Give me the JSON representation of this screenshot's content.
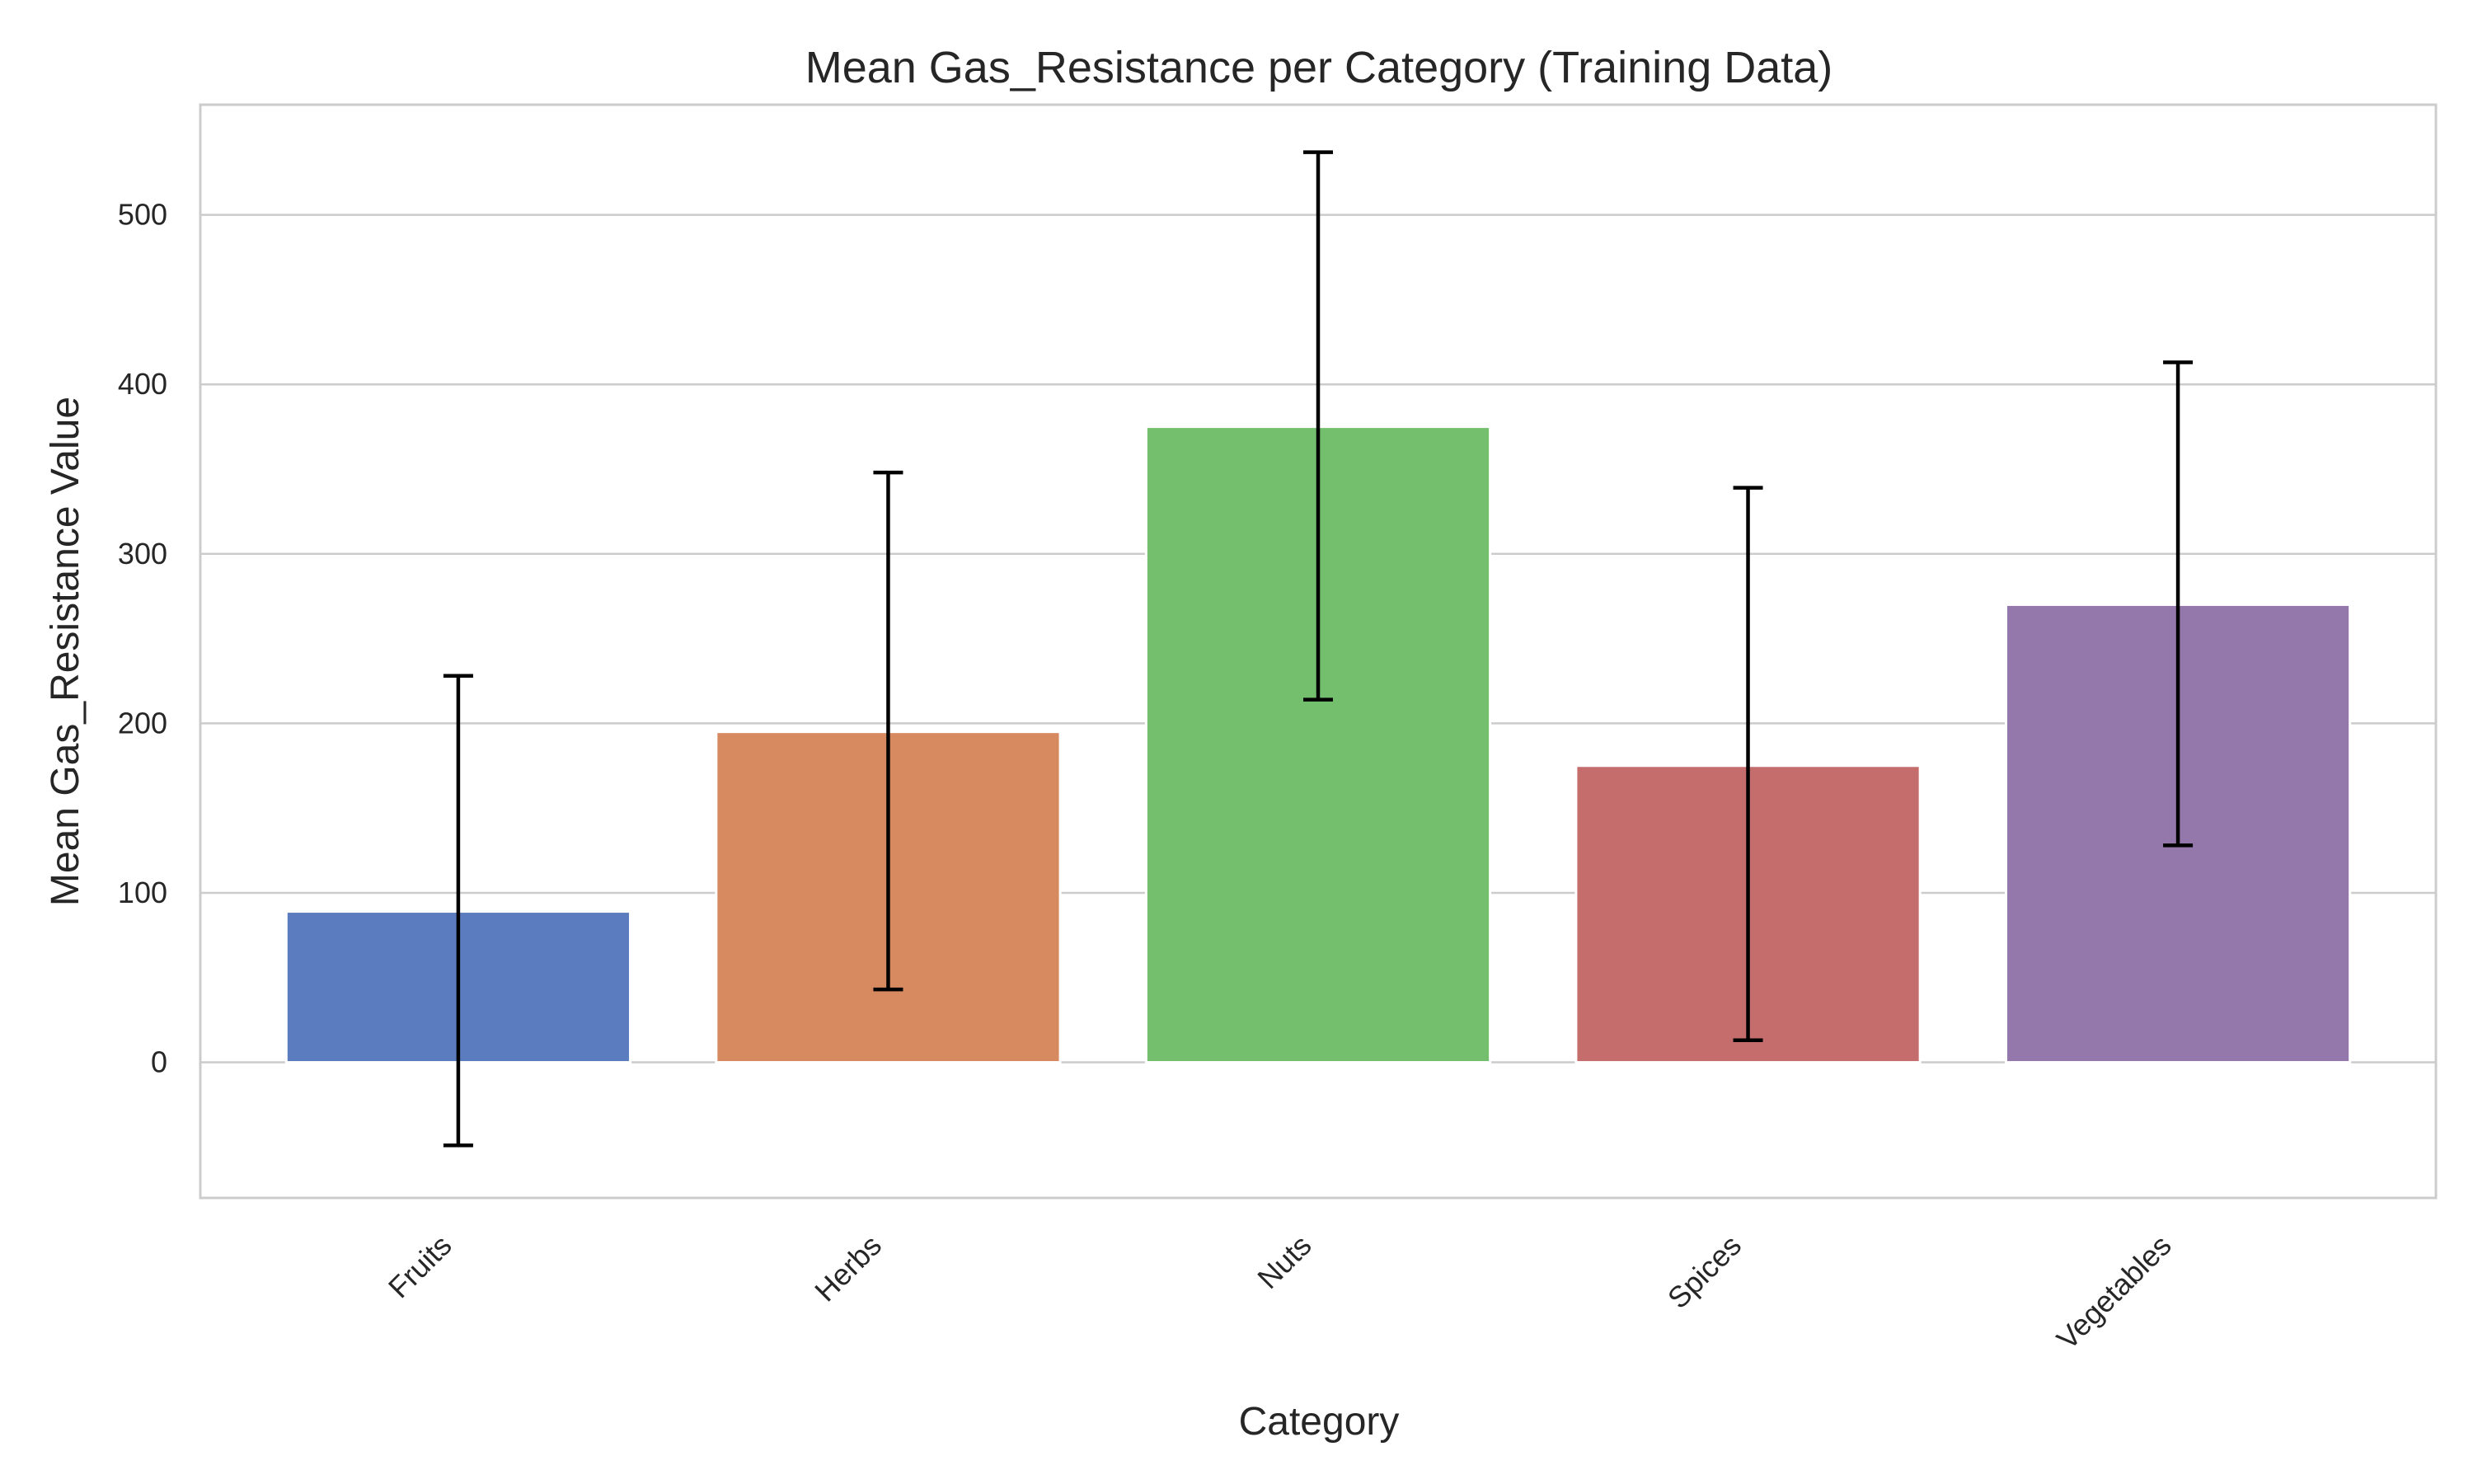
{
  "chart_data": {
    "type": "bar",
    "title": "Mean Gas_Resistance per Category (Training Data)",
    "xlabel": "Category",
    "ylabel": "Mean Gas_Resistance Value",
    "categories": [
      "Fruits",
      "Herbs",
      "Nuts",
      "Spices",
      "Vegetables"
    ],
    "values": [
      89,
      195,
      375,
      175,
      270
    ],
    "error_low": [
      -49,
      43,
      214,
      13,
      128
    ],
    "error_high": [
      228,
      348,
      537,
      339,
      413
    ],
    "colors": [
      "#5b7dc0",
      "#d78a60",
      "#74bf6e",
      "#c56c6c",
      "#9477ab"
    ],
    "ylim": [
      -80,
      565
    ],
    "yticks": [
      0,
      100,
      200,
      300,
      400,
      500
    ],
    "grid": true,
    "legend": "none"
  }
}
